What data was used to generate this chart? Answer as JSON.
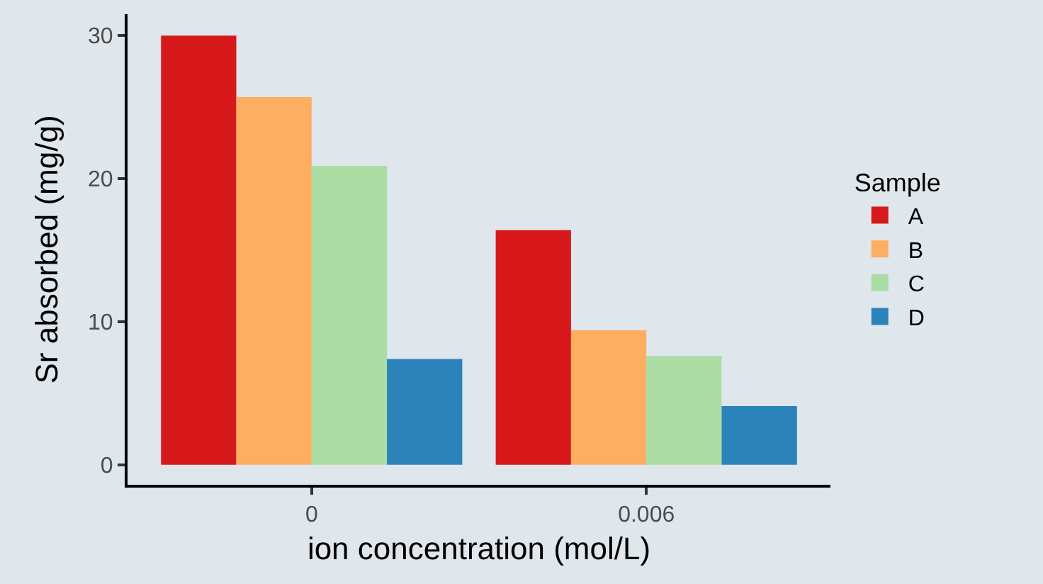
{
  "chart_data": {
    "type": "bar",
    "xlabel": "ion concentration (mol/L)",
    "ylabel": "Sr absorbed (mg/g)",
    "legend_title": "Sample",
    "categories": [
      "0",
      "0.006"
    ],
    "series": [
      {
        "name": "A",
        "color": "#d7191c",
        "values": [
          30.0,
          16.4
        ]
      },
      {
        "name": "B",
        "color": "#fdae61",
        "values": [
          25.7,
          9.4
        ]
      },
      {
        "name": "C",
        "color": "#abdda4",
        "values": [
          20.9,
          7.6
        ]
      },
      {
        "name": "D",
        "color": "#2b83ba",
        "values": [
          7.4,
          4.1
        ]
      }
    ],
    "ylim": [
      -1.4,
      31.5
    ],
    "yticks": [
      0,
      10,
      20,
      30
    ],
    "grid": false,
    "legend": "right"
  }
}
